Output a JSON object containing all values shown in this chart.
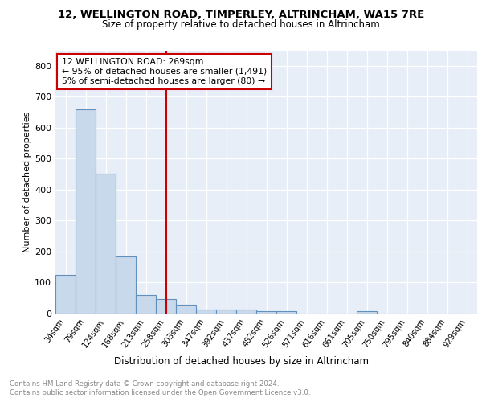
{
  "title1": "12, WELLINGTON ROAD, TIMPERLEY, ALTRINCHAM, WA15 7RE",
  "title2": "Size of property relative to detached houses in Altrincham",
  "xlabel": "Distribution of detached houses by size in Altrincham",
  "ylabel": "Number of detached properties",
  "categories": [
    "34sqm",
    "79sqm",
    "124sqm",
    "168sqm",
    "213sqm",
    "258sqm",
    "303sqm",
    "347sqm",
    "392sqm",
    "437sqm",
    "482sqm",
    "526sqm",
    "571sqm",
    "616sqm",
    "661sqm",
    "705sqm",
    "750sqm",
    "795sqm",
    "840sqm",
    "884sqm",
    "929sqm"
  ],
  "values": [
    125,
    660,
    452,
    185,
    60,
    48,
    28,
    12,
    13,
    13,
    9,
    8,
    0,
    0,
    0,
    9,
    0,
    0,
    0,
    0,
    0
  ],
  "bar_color": "#c9d9ec",
  "bar_edge_color": "#6090bb",
  "vline_x": 5,
  "vline_color": "#cc0000",
  "annotation_text": "12 WELLINGTON ROAD: 269sqm\n← 95% of detached houses are smaller (1,491)\n5% of semi-detached houses are larger (80) →",
  "annotation_box_edge": "#cc0000",
  "footer1": "Contains HM Land Registry data © Crown copyright and database right 2024.",
  "footer2": "Contains public sector information licensed under the Open Government Licence v3.0.",
  "plot_bg_color": "#e8eef8",
  "ylim": [
    0,
    850
  ],
  "yticks": [
    0,
    100,
    200,
    300,
    400,
    500,
    600,
    700,
    800
  ]
}
